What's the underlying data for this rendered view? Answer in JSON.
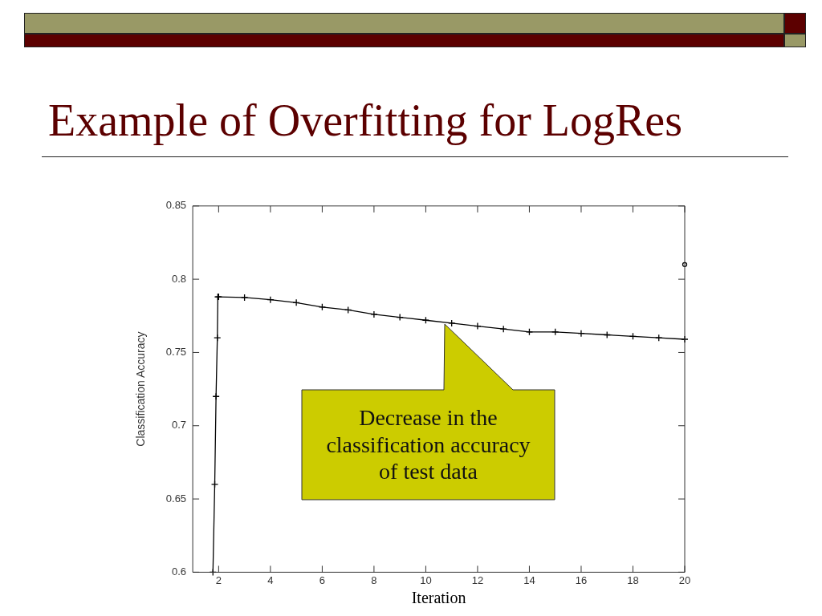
{
  "chart_data": {
    "type": "line",
    "title": "Example of Overfitting for LogRes",
    "xlabel": "Iteration",
    "ylabel": "Classification Accuracy",
    "xlim": [
      1,
      20
    ],
    "xticks": [
      2,
      4,
      6,
      8,
      10,
      12,
      14,
      16,
      18,
      20
    ],
    "ylim": [
      0.6,
      0.85
    ],
    "yticks": [
      0.6,
      0.65,
      0.7,
      0.75,
      0.8,
      0.85
    ],
    "grid": false,
    "legend": false,
    "series": [
      {
        "color": "#000000",
        "marker": "cross",
        "x": [
          1.78,
          1.85,
          1.9,
          1.95,
          1.97,
          2,
          3,
          4,
          5,
          6,
          7,
          8,
          9,
          10,
          11,
          12,
          13,
          14,
          15,
          16,
          17,
          18,
          19,
          20
        ],
        "values": [
          0.6,
          0.66,
          0.72,
          0.76,
          0.788,
          0.788,
          0.7875,
          0.786,
          0.784,
          0.781,
          0.779,
          0.776,
          0.774,
          0.772,
          0.77,
          0.768,
          0.766,
          0.764,
          0.764,
          0.763,
          0.762,
          0.761,
          0.76,
          0.759
        ]
      },
      {
        "type": "scatter",
        "color": "#000000",
        "marker": "circle",
        "x": [
          20
        ],
        "values": [
          0.81
        ]
      }
    ],
    "annotations": [
      "Decrease in the classification accuracy of test data"
    ]
  }
}
